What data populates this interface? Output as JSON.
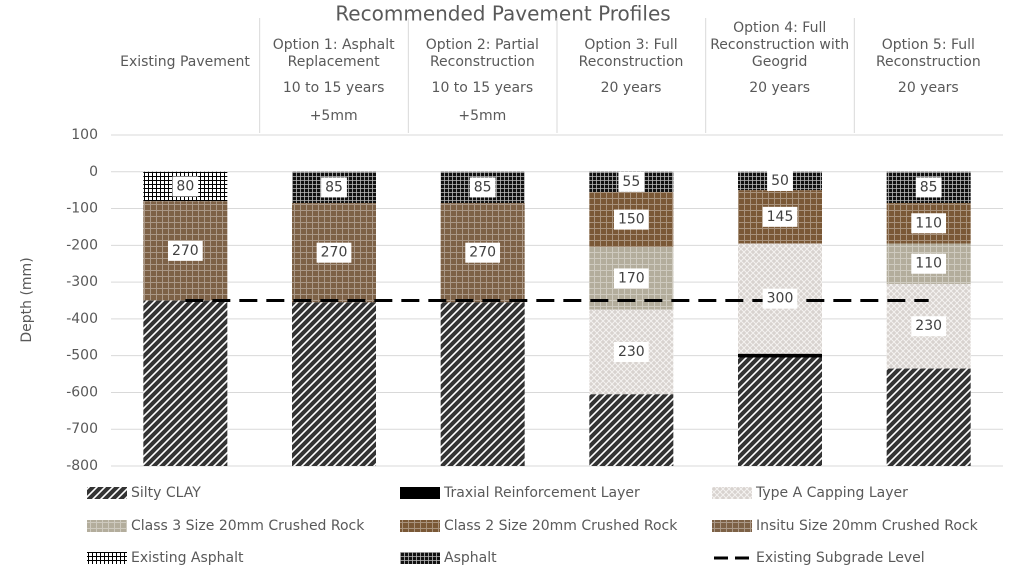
{
  "chart_data": {
    "type": "bar",
    "stacked": true,
    "title": "Recommended Pavement Profiles",
    "ylabel": "Depth (mm)",
    "categories": [
      "Existing Pavement",
      "Option 1: Asphalt Replacement",
      "Option 2: Partial Reconstruction",
      "Option 3: Full Reconstruction",
      "Option 4: Full Reconstruction with Geogrid",
      "Option 5: Full Reconstruction"
    ],
    "durations": [
      null,
      "10 to 15 years",
      "10 to 15 years",
      "20 years",
      "20 years",
      "20 years"
    ],
    "notes": [
      null,
      "+5mm",
      "+5mm",
      null,
      null,
      null
    ],
    "ylim": [
      -800,
      100
    ],
    "yticks": [
      100,
      0,
      -100,
      -200,
      -300,
      -400,
      -500,
      -600,
      -700,
      -800
    ],
    "grid": true,
    "legend": "bottom",
    "series": [
      {
        "name": "Silty CLAY",
        "color": "#333333",
        "pattern": "diagonal",
        "values": [
          -450,
          -445,
          -445,
          -195,
          -295,
          -265
        ],
        "value_labels": [
          null,
          null,
          null,
          null,
          null,
          null
        ]
      },
      {
        "name": "Traxial Reinforcement Layer",
        "color": "#000000",
        "pattern": "solid",
        "values": [
          null,
          null,
          null,
          null,
          -10,
          null
        ],
        "value_labels": [
          null,
          null,
          null,
          null,
          null,
          null
        ]
      },
      {
        "name": "Type A Capping Layer",
        "color": "#d8d3cf",
        "pattern": "dots",
        "values": [
          null,
          null,
          null,
          -230,
          -300,
          -230
        ],
        "value_labels": [
          null,
          null,
          null,
          "230",
          "300",
          "230"
        ]
      },
      {
        "name": "Class 3 Size 20mm Crushed Rock",
        "color": "#b3ad9c",
        "pattern": "grid",
        "values": [
          null,
          null,
          null,
          -170,
          null,
          -110
        ],
        "value_labels": [
          null,
          null,
          null,
          "170",
          null,
          "110"
        ]
      },
      {
        "name": "Class 2 Size 20mm Crushed Rock",
        "color": "#7a5836",
        "pattern": "grid",
        "values": [
          null,
          null,
          null,
          -150,
          -145,
          -110
        ],
        "value_labels": [
          null,
          null,
          null,
          "150",
          "145",
          "110"
        ]
      },
      {
        "name": "Insitu Size 20mm Crushed Rock",
        "color": "#7d6146",
        "pattern": "grid",
        "values": [
          -270,
          -270,
          -270,
          null,
          null,
          null
        ],
        "value_labels": [
          "270",
          "270",
          "270",
          null,
          null,
          null
        ]
      },
      {
        "name": "Existing Asphalt",
        "color": "#ffffff",
        "pattern": "grid-dark",
        "values": [
          -80,
          null,
          null,
          null,
          null,
          null
        ],
        "value_labels": [
          "80",
          null,
          null,
          null,
          null,
          null
        ]
      },
      {
        "name": "Asphalt",
        "color": "#111111",
        "pattern": "grid-light",
        "values": [
          null,
          -85,
          -85,
          -55,
          -50,
          -85
        ],
        "value_labels": [
          null,
          "85",
          "85",
          "55",
          "50",
          "85"
        ]
      },
      {
        "name": "Existing Subgrade Level",
        "type": "line",
        "color": "#000000",
        "dash": true,
        "values": [
          -350,
          -350,
          -350,
          -350,
          -350,
          -350
        ]
      }
    ]
  }
}
